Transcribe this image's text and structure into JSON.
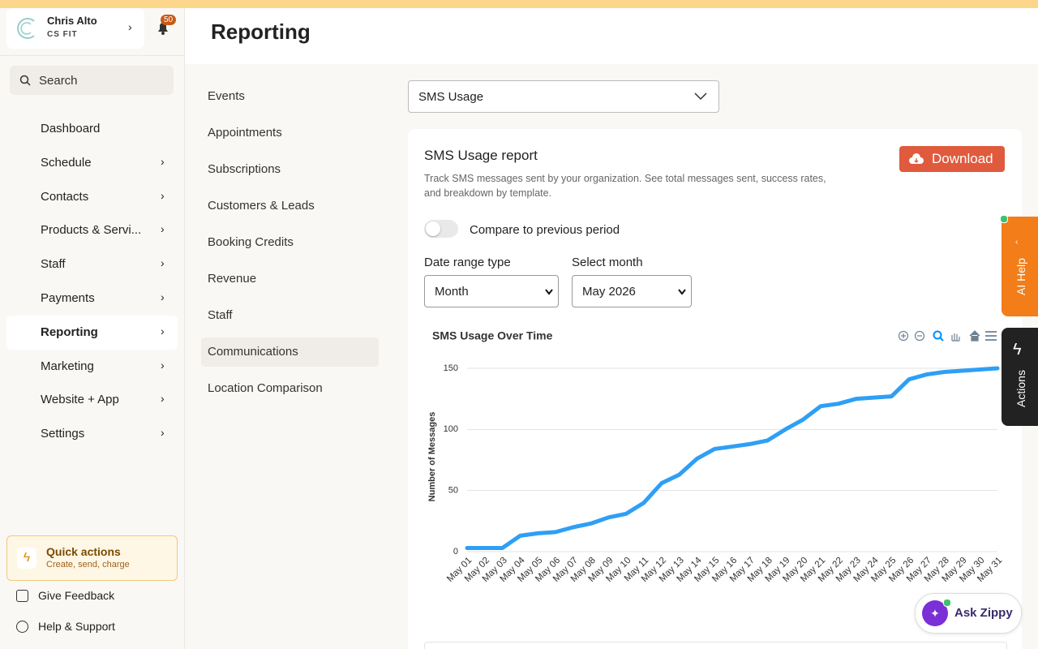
{
  "sidebar": {
    "user_name": "Chris Alto",
    "org": "CS FIT",
    "notifications": 50,
    "search_placeholder": "Search",
    "nav": [
      "Dashboard",
      "Schedule",
      "Contacts",
      "Products & Servi...",
      "Staff",
      "Payments",
      "Reporting",
      "Marketing",
      "Website + App",
      "Settings"
    ],
    "quick_actions": {
      "title": "Quick actions",
      "subtitle": "Create, send, charge"
    },
    "footer": [
      "Give Feedback",
      "Help & Support"
    ]
  },
  "header": {
    "title": "Reporting"
  },
  "report_menu": [
    "Events",
    "Appointments",
    "Subscriptions",
    "Customers & Leads",
    "Booking Credits",
    "Revenue",
    "Staff",
    "Communications",
    "Location Comparison"
  ],
  "report_select": "SMS Usage",
  "card": {
    "title": "SMS Usage report",
    "description": "Track SMS messages sent by your organization. See total messages sent, success rates, and breakdown by template.",
    "download": "Download",
    "compare_label": "Compare to previous period",
    "date_range_label": "Date range type",
    "date_range_value": "Month",
    "month_label": "Select month",
    "month_value": "May 2026"
  },
  "chart_data": {
    "type": "line",
    "title": "SMS Usage Over Time",
    "y_label": "Number of Messages",
    "categories": [
      "May 01",
      "May 02",
      "May 03",
      "May 04",
      "May 05",
      "May 06",
      "May 07",
      "May 08",
      "May 09",
      "May 10",
      "May 11",
      "May 12",
      "May 13",
      "May 14",
      "May 15",
      "May 16",
      "May 17",
      "May 18",
      "May 19",
      "May 20",
      "May 21",
      "May 22",
      "May 23",
      "May 24",
      "May 25",
      "May 26",
      "May 27",
      "May 28",
      "May 29",
      "May 30",
      "May 31"
    ],
    "values": [
      3,
      3,
      3,
      13,
      15,
      16,
      20,
      23,
      28,
      31,
      40,
      56,
      63,
      76,
      84,
      86,
      88,
      91,
      100,
      108,
      119,
      121,
      125,
      126,
      127,
      141,
      145,
      147,
      148,
      149,
      150
    ],
    "color": "#2e9ff5",
    "ylim": [
      0,
      150
    ],
    "yticks": [
      0,
      50,
      100,
      150
    ],
    "grid": true
  },
  "side_tabs": {
    "ai_help": "AI Help",
    "actions": "Actions"
  },
  "assistant": "Ask Zippy"
}
